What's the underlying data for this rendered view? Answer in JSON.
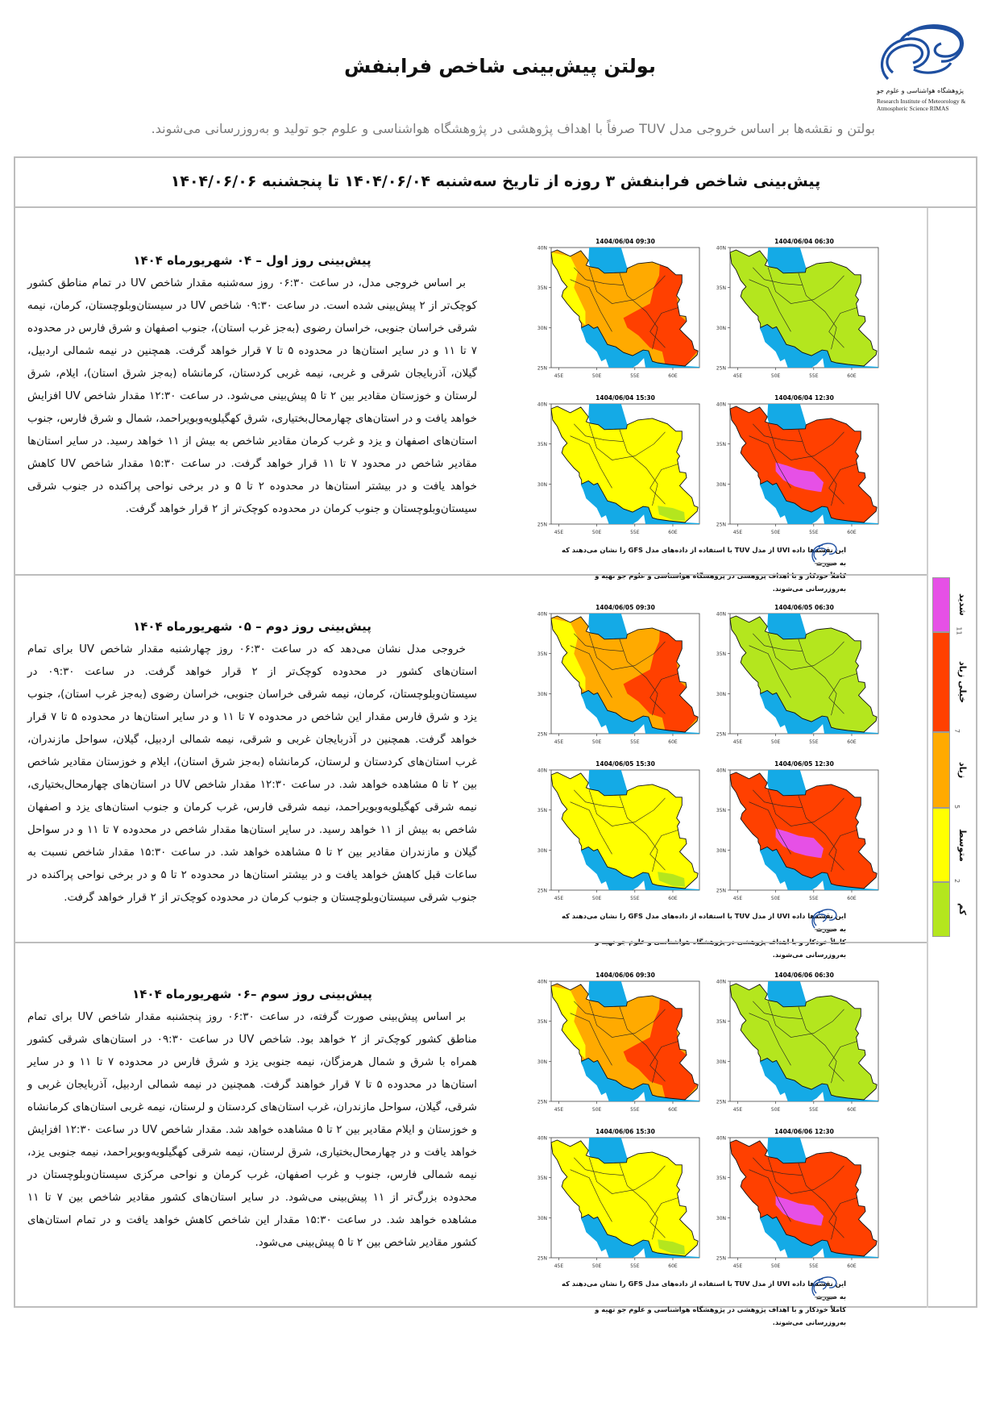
{
  "header": {
    "title": "بولتن پیش‌بینی شاخص فرابنفش",
    "logo_text_fa": "پژوهشگاه هواشناسی و علوم جو",
    "logo_text_en": "Research Institute of Meteorology & Atmospheric Science RIMAS",
    "subtitle": "بولتن و نقشه‌ها بر اساس خروجی مدل TUV صرفاً با اهداف پژوهشی در پژوهشگاه هواشناسی و علوم جو تولید و به‌روزرسانی می‌شوند."
  },
  "box_title": "پیش‌بینی شاخص فرابنفش ۳ روزه از تاریخ سه‌شنبه ۱۴۰۴/۰۶/۰۴ تا پنجشنبه ۱۴۰۴/۰۶/۰۶",
  "map_axes": {
    "lat_labels": [
      "40N",
      "35N",
      "30N",
      "25N"
    ],
    "lon_labels": [
      "45E",
      "50E",
      "55E",
      "60E"
    ]
  },
  "footnote": {
    "line1": "این نقشه‌ها داده UVI از مدل TUV با استفاده از داده‌های مدل GFS را نشان می‌دهند که به صورت",
    "line2": "کاملاً خودکار و با اهداف پژوهشی در پژوهشگاه هواشناسی و علوم جو تهیه و به‌روزرسانی می‌شوند."
  },
  "days": [
    {
      "heading": "پیش‌بینی روز اول – ۰۴ شهریورماه ۱۴۰۴",
      "body": "بر اساس خروجی مدل، در ساعت ۰۶:۳۰ روز سه‌شنبه مقدار شاخص UV در تمام مناطق کشور کوچک‌تر از ۲ پیش‌بینی شده است. در ساعت ۰۹:۳۰ شاخص UV در سیستان‌وبلوچستان، کرمان، نیمه شرقی خراسان جنوبی، خراسان رضوی (به‌جز غرب استان)، جنوب اصفهان و شرق فارس در محدوده ۷ تا ۱۱ و در سایر استان‌ها در محدوده ۵ تا ۷ قرار خواهد گرفت. همچنین در نیمه شمالی اردبیل، گیلان، آذربایجان شرقی و غربی، نیمه غربی کردستان، کرمانشاه (به‌جز شرق استان)، ایلام، شرق لرستان و خوزستان مقادیر بین ۲ تا ۵ پیش‌بینی می‌شود. در ساعت ۱۲:۳۰ مقدار شاخص UV افزایش خواهد یافت و در استان‌های چهارمحال‌بختیاری، شرق کهگیلویه‌وبویراحمد، شمال و شرق فارس، جنوب استان‌های اصفهان و یزد و غرب کرمان مقادیر شاخص به بیش از ۱۱ خواهد رسید. در سایر استان‌ها مقادیر شاخص در محدود ۷ تا ۱۱ قرار خواهد گرفت. در ساعت ۱۵:۳۰ مقدار شاخص UV کاهش خواهد یافت و در بیشتر استان‌ها در محدوده ۲ تا ۵ و در برخی نواحی پراکنده در جنوب شرقی سیستان‌وبلوچستان و جنوب کرمان در محدوده کوچک‌تر از ۲ قرار خواهد گرفت.",
      "maps": [
        {
          "title": "1404/06/04   09:30",
          "time": "09:30",
          "base_color": "#ffaa00"
        },
        {
          "title": "1404/06/04   06:30",
          "time": "06:30",
          "base_color": "#b4e61e"
        },
        {
          "title": "1404/06/04   15:30",
          "time": "15:30",
          "base_color": "#ffff00"
        },
        {
          "title": "1404/06/04   12:30",
          "time": "12:30",
          "base_color": "#ff4000"
        }
      ]
    },
    {
      "heading": "پیش‌بینی روز دوم – ۰۵ شهریورماه ۱۴۰۴",
      "body": "خروجی مدل نشان می‌دهد که در ساعت ۰۶:۳۰ روز چهارشنبه مقدار شاخص UV برای تمام استان‌های کشور در محدوده کوچک‌تر از ۲ قرار خواهد گرفت. در ساعت ۰۹:۳۰ در سیستان‌وبلوچستان، کرمان، نیمه شرقی خراسان جنوبی، خراسان رضوی (به‌جز غرب استان)، جنوب یزد و شرق فارس مقدار این شاخص در محدوده ۷ تا ۱۱ و در سایر استان‌ها در محدوده ۵ تا ۷ قرار خواهد گرفت. همچنین در آذربایجان غربی و شرقی، نیمه شمالی اردبیل، گیلان، سواحل مازندران، غرب استان‌های کردستان و لرستان، کرمانشاه (به‌جز شرق استان)، ایلام و خوزستان مقادیر شاخص بین ۲ تا ۵ مشاهده خواهد شد. در ساعت ۱۲:۳۰ مقدار شاخص UV در استان‌های چهارمحال‌بختیاری، نیمه شرقی کهگیلویه‌وبویراحمد، نیمه شرقی فارس، غرب کرمان و جنوب استان‌های یزد و اصفهان شاخص به بیش از ۱۱ خواهد رسید. در سایر استان‌ها مقدار شاخص در محدوده ۷ تا ۱۱ و در سواحل گیلان و مازندران مقادیر بین ۲ تا ۵ مشاهده خواهد شد. در ساعت ۱۵:۳۰ مقدار شاخص نسبت به ساعات قبل کاهش خواهد یافت و در بیشتر استان‌ها در محدوده ۲ تا ۵ و در برخی نواحی پراکنده در جنوب شرقی سیستان‌وبلوچستان و جنوب کرمان در محدوده کوچک‌تر از ۲ قرار خواهد گرفت.",
      "maps": [
        {
          "title": "1404/06/05   09:30",
          "time": "09:30",
          "base_color": "#ffaa00"
        },
        {
          "title": "1404/06/05   06:30",
          "time": "06:30",
          "base_color": "#b4e61e"
        },
        {
          "title": "1404/06/05   15:30",
          "time": "15:30",
          "base_color": "#ffff00"
        },
        {
          "title": "1404/06/05   12:30",
          "time": "12:30",
          "base_color": "#ff4000"
        }
      ]
    },
    {
      "heading": "پیش‌بینی روز سوم –۰۶ شهریورماه ۱۴۰۴",
      "body": "بر اساس پیش‌بینی صورت گرفته، در ساعت ۰۶:۳۰ روز پنجشنبه مقدار شاخص UV برای تمام مناطق کشور کوچک‌تر از ۲ خواهد بود. شاخص UV در ساعت ۰۹:۳۰ در استان‌های شرقی کشور همراه با شرق و شمال هرمزگان، نیمه جنوبی یزد و شرق فارس در محدوده ۷ تا ۱۱ و در سایر استان‌ها در محدوده ۵ تا ۷ قرار خواهند گرفت. همچنین در نیمه شمالی اردبیل، آذربایجان غربی و شرقی، گیلان، سواحل مازندران، غرب استان‌های کردستان و لرستان، نیمه غربی استان‌های کرمانشاه و خوزستان و ایلام مقادیر بین ۲ تا ۵ مشاهده خواهد شد. مقدار شاخص UV در ساعت ۱۲:۳۰ افزایش خواهد یافت و در چهارمحال‌بختیاری، شرق لرستان، نیمه شرقی کهگیلویه‌وبویراحمد، نیمه جنوبی یزد، نیمه شمالی فارس، جنوب و غرب اصفهان، غرب کرمان و نواحی مرکزی سیستان‌وبلوچستان در محدوده بزرگ‌تر از ۱۱ پیش‌بینی می‌شود. در سایر استان‌های کشور مقادیر شاخص بین ۷ تا ۱۱ مشاهده خواهد شد. در ساعت ۱۵:۳۰ مقدار این شاخص کاهش خواهد یافت و در تمام استان‌های کشور مقادیر شاخص بین ۲ تا ۵ پیش‌بینی می‌شود.",
      "maps": [
        {
          "title": "1404/06/06   09:30",
          "time": "09:30",
          "base_color": "#ffaa00"
        },
        {
          "title": "1404/06/06   06:30",
          "time": "06:30",
          "base_color": "#b4e61e"
        },
        {
          "title": "1404/06/06   15:30",
          "time": "15:30",
          "base_color": "#ffff00"
        },
        {
          "title": "1404/06/06   12:30",
          "time": "12:30",
          "base_color": "#ff4000"
        }
      ]
    }
  ],
  "legend": {
    "categories": [
      {
        "label": "شدید",
        "color": "#e650e6"
      },
      {
        "label": "خیلی زیاد",
        "color": "#ff4000"
      },
      {
        "label": "زیاد",
        "color": "#ffaa00"
      },
      {
        "label": "متوسط",
        "color": "#ffff00"
      },
      {
        "label": "کم",
        "color": "#b4e61e"
      }
    ],
    "thresholds": [
      "11",
      "7",
      "5",
      "2"
    ]
  },
  "colors": {
    "sea": "#14aae6",
    "border": "#bdbdbd"
  }
}
